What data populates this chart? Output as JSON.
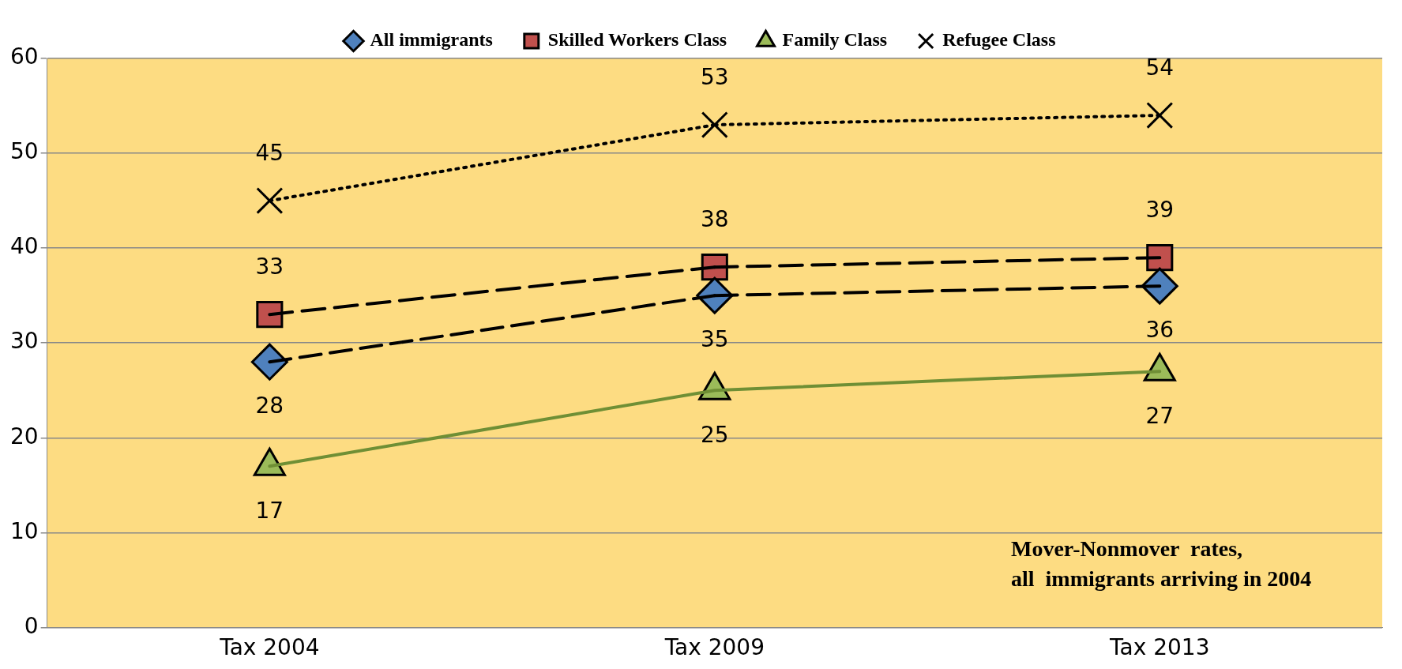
{
  "chart_data": {
    "type": "line",
    "categories": [
      "Tax 2004",
      "Tax 2009",
      "Tax 2013"
    ],
    "series": [
      {
        "name": "All immigrants",
        "color": "#4f81bd",
        "values": [
          28,
          35,
          36
        ],
        "marker": "diamond",
        "line_style": "dashed"
      },
      {
        "name": "Skilled Workers Class",
        "color": "#c0504d",
        "values": [
          33,
          38,
          39
        ],
        "marker": "square",
        "line_style": "dashed"
      },
      {
        "name": "Family Class",
        "color": "#9bbb59",
        "values": [
          17,
          25,
          27
        ],
        "marker": "triangle",
        "line_style": "solid"
      },
      {
        "name": "Refugee Class",
        "color": "#000000",
        "values": [
          45,
          53,
          54
        ],
        "marker": "cross",
        "line_style": "dotted"
      }
    ],
    "ylim": [
      0,
      60
    ],
    "yticks": [
      0,
      10,
      20,
      30,
      40,
      50,
      60
    ],
    "grid": "y",
    "legend": "top",
    "data_labels": true,
    "annotations": [
      "Mover-Nonmover  rates, all  immigrants arriving in 2004"
    ]
  }
}
